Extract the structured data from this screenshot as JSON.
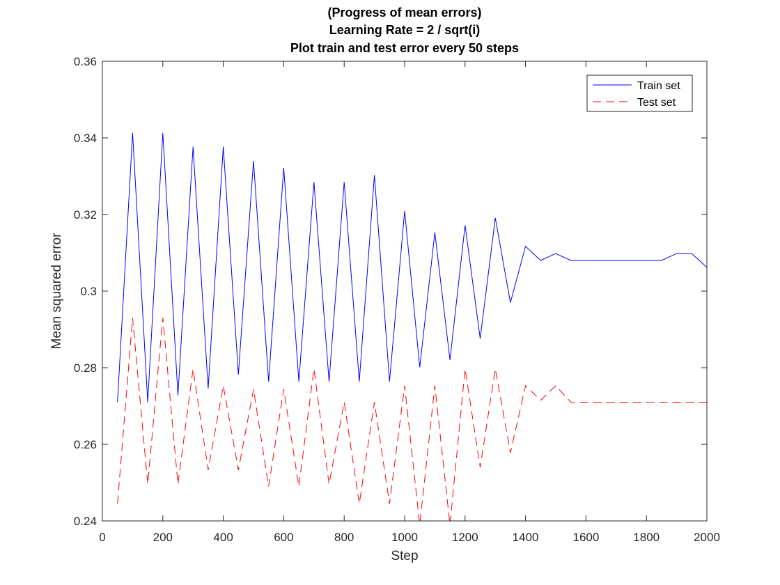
{
  "chart_data": {
    "type": "line",
    "title": [
      "(Progress of mean errors)",
      "Learning Rate = 2 / sqrt(i)",
      "Plot train and test error every 50 steps"
    ],
    "xlabel": "Step",
    "ylabel": "Mean squared error",
    "xlim": [
      0,
      2000
    ],
    "ylim": [
      0.24,
      0.36
    ],
    "xticks": [
      0,
      200,
      400,
      600,
      800,
      1000,
      1200,
      1400,
      1600,
      1800,
      2000
    ],
    "xtick_labels": [
      "0",
      "200",
      "400",
      "600",
      "800",
      "1000",
      "1200",
      "1400",
      "1600",
      "1800",
      "2000"
    ],
    "yticks": [
      0.24,
      0.26,
      0.28,
      0.3,
      0.32,
      0.34,
      0.36
    ],
    "ytick_labels": [
      "0.24",
      "0.26",
      "0.28",
      "0.3",
      "0.32",
      "0.34",
      "0.36"
    ],
    "grid": false,
    "legend_position": "top-right",
    "x": [
      50,
      100,
      150,
      200,
      250,
      300,
      350,
      400,
      450,
      500,
      550,
      600,
      650,
      700,
      750,
      800,
      850,
      900,
      950,
      1000,
      1050,
      1100,
      1150,
      1200,
      1250,
      1300,
      1350,
      1400,
      1450,
      1500,
      1550,
      1600,
      1650,
      1700,
      1750,
      1800,
      1850,
      1900,
      1950,
      2000
    ],
    "series": [
      {
        "name": "Train set",
        "color": "#0000ff",
        "style": "solid",
        "values": [
          0.271,
          0.3413,
          0.271,
          0.3413,
          0.2728,
          0.3377,
          0.2746,
          0.3377,
          0.2782,
          0.334,
          0.2764,
          0.3322,
          0.2764,
          0.3285,
          0.2764,
          0.3285,
          0.2764,
          0.3303,
          0.2764,
          0.3209,
          0.2801,
          0.3153,
          0.282,
          0.3172,
          0.2876,
          0.3191,
          0.297,
          0.3117,
          0.308,
          0.3098,
          0.308,
          0.308,
          0.308,
          0.308,
          0.308,
          0.308,
          0.308,
          0.3098,
          0.3098,
          0.3062
        ]
      },
      {
        "name": "Test set",
        "color": "#ff0000",
        "style": "dashed",
        "values": [
          0.2445,
          0.293,
          0.2496,
          0.293,
          0.2496,
          0.2797,
          0.2533,
          0.2753,
          0.2533,
          0.2744,
          0.249,
          0.2744,
          0.249,
          0.2797,
          0.2496,
          0.271,
          0.2445,
          0.271,
          0.2445,
          0.2753,
          0.239,
          0.2753,
          0.239,
          0.2797,
          0.254,
          0.2797,
          0.2578,
          0.2753,
          0.2715,
          0.2753,
          0.271,
          0.271,
          0.271,
          0.271,
          0.271,
          0.271,
          0.271,
          0.271,
          0.271,
          0.271
        ]
      }
    ]
  }
}
